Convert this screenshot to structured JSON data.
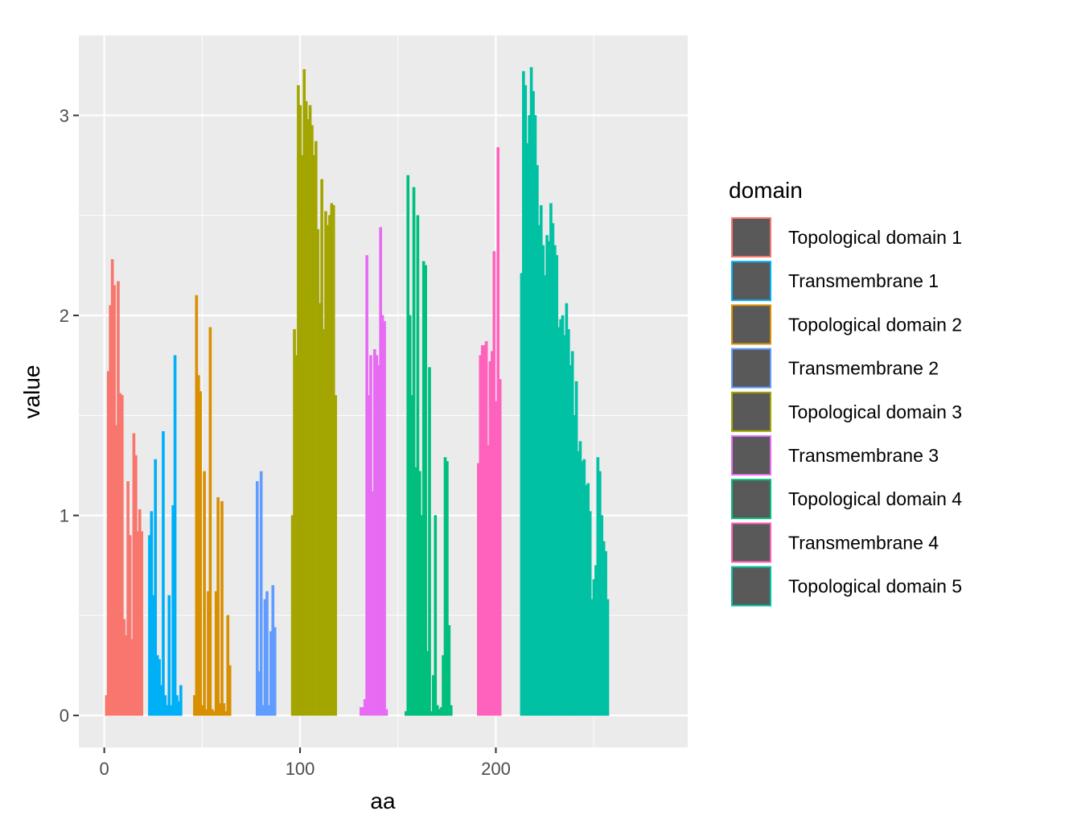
{
  "chart_data": {
    "type": "bar",
    "xlabel": "aa",
    "ylabel": "value",
    "xlim": [
      -13,
      298
    ],
    "ylim": [
      -0.16,
      3.4
    ],
    "x_ticks": [
      0,
      100,
      200
    ],
    "y_ticks": [
      0,
      1,
      2,
      3
    ],
    "grid": true,
    "legend_title": "domain",
    "legend_position": "right",
    "series": [
      {
        "name": "Topological domain 1",
        "color": "#F8766D",
        "x_start": 1,
        "values": [
          0.1,
          1.72,
          2.05,
          2.28,
          2.15,
          1.45,
          2.17,
          1.61,
          1.6,
          0.48,
          0.4,
          1.17,
          0.9,
          0.38,
          1.41,
          1.3,
          0.92,
          1.03,
          0.92
        ]
      },
      {
        "name": "Transmembrane 1",
        "color": "#00B0F6",
        "x_start": 23,
        "values": [
          0.9,
          1.02,
          0.6,
          1.28,
          0.3,
          0.28,
          0.15,
          1.42,
          0.1,
          0.05,
          0.6,
          0.05,
          1.05,
          1.8,
          0.1,
          0.07,
          0.15
        ]
      },
      {
        "name": "Topological domain 2",
        "color": "#D89000",
        "x_start": 46,
        "values": [
          0.1,
          2.1,
          1.7,
          1.62,
          0.05,
          1.22,
          0.03,
          0.62,
          1.94,
          0.03,
          0.02,
          0.62,
          1.09,
          0.06,
          1.07,
          0.06,
          0.02,
          0.5,
          0.25
        ]
      },
      {
        "name": "Transmembrane 2",
        "color": "#619CFF",
        "x_start": 78,
        "values": [
          1.17,
          0.22,
          1.22,
          0.05,
          0.58,
          0.62,
          0.05,
          0.42,
          0.65,
          0.44
        ]
      },
      {
        "name": "Topological domain 3",
        "color": "#A3A500",
        "x_start": 96,
        "values": [
          1.0,
          1.93,
          1.8,
          3.15,
          3.05,
          2.8,
          3.23,
          3.07,
          2.98,
          3.05,
          2.95,
          2.8,
          2.87,
          2.43,
          2.06,
          2.68,
          1.93,
          2.52,
          2.45,
          2.5,
          2.56,
          2.55,
          1.6
        ]
      },
      {
        "name": "Transmembrane 3",
        "color": "#E76BF3",
        "x_start": 131,
        "values": [
          0.04,
          0.04,
          0.08,
          2.3,
          1.6,
          1.8,
          1.12,
          1.83,
          1.8,
          1.75,
          2.44,
          2.0,
          1.97,
          0.03
        ]
      },
      {
        "name": "Topological domain 4",
        "color": "#00BF7D",
        "x_start": 154,
        "values": [
          0.02,
          2.7,
          2.0,
          1.6,
          2.64,
          1.24,
          2.5,
          1.22,
          1.0,
          2.27,
          2.25,
          0.32,
          1.74,
          0.02,
          0.2,
          1.0,
          0.05,
          0.03,
          0.04,
          0.3,
          1.29,
          1.27,
          0.45,
          0.05
        ]
      },
      {
        "name": "Transmembrane 4",
        "color": "#FF62BC",
        "x_start": 191,
        "values": [
          1.26,
          1.8,
          1.85,
          1.85,
          1.87,
          1.35,
          1.77,
          1.82,
          2.32,
          1.57,
          2.84,
          1.68
        ]
      },
      {
        "name": "Topological domain 5",
        "color": "#00C1A3",
        "x_start": 213,
        "values": [
          2.21,
          3.22,
          3.15,
          2.86,
          3.0,
          3.24,
          3.12,
          3.0,
          2.75,
          2.45,
          2.55,
          2.35,
          2.2,
          2.4,
          2.37,
          2.56,
          2.46,
          2.35,
          2.3,
          1.94,
          1.98,
          2.0,
          1.9,
          2.06,
          1.93,
          1.75,
          1.82,
          1.5,
          1.67,
          1.32,
          1.37,
          1.27,
          1.28,
          1.15,
          1.16,
          1.02,
          0.58,
          0.68,
          0.75,
          1.29,
          1.22,
          1.0,
          0.87,
          0.82,
          0.58
        ]
      }
    ]
  }
}
